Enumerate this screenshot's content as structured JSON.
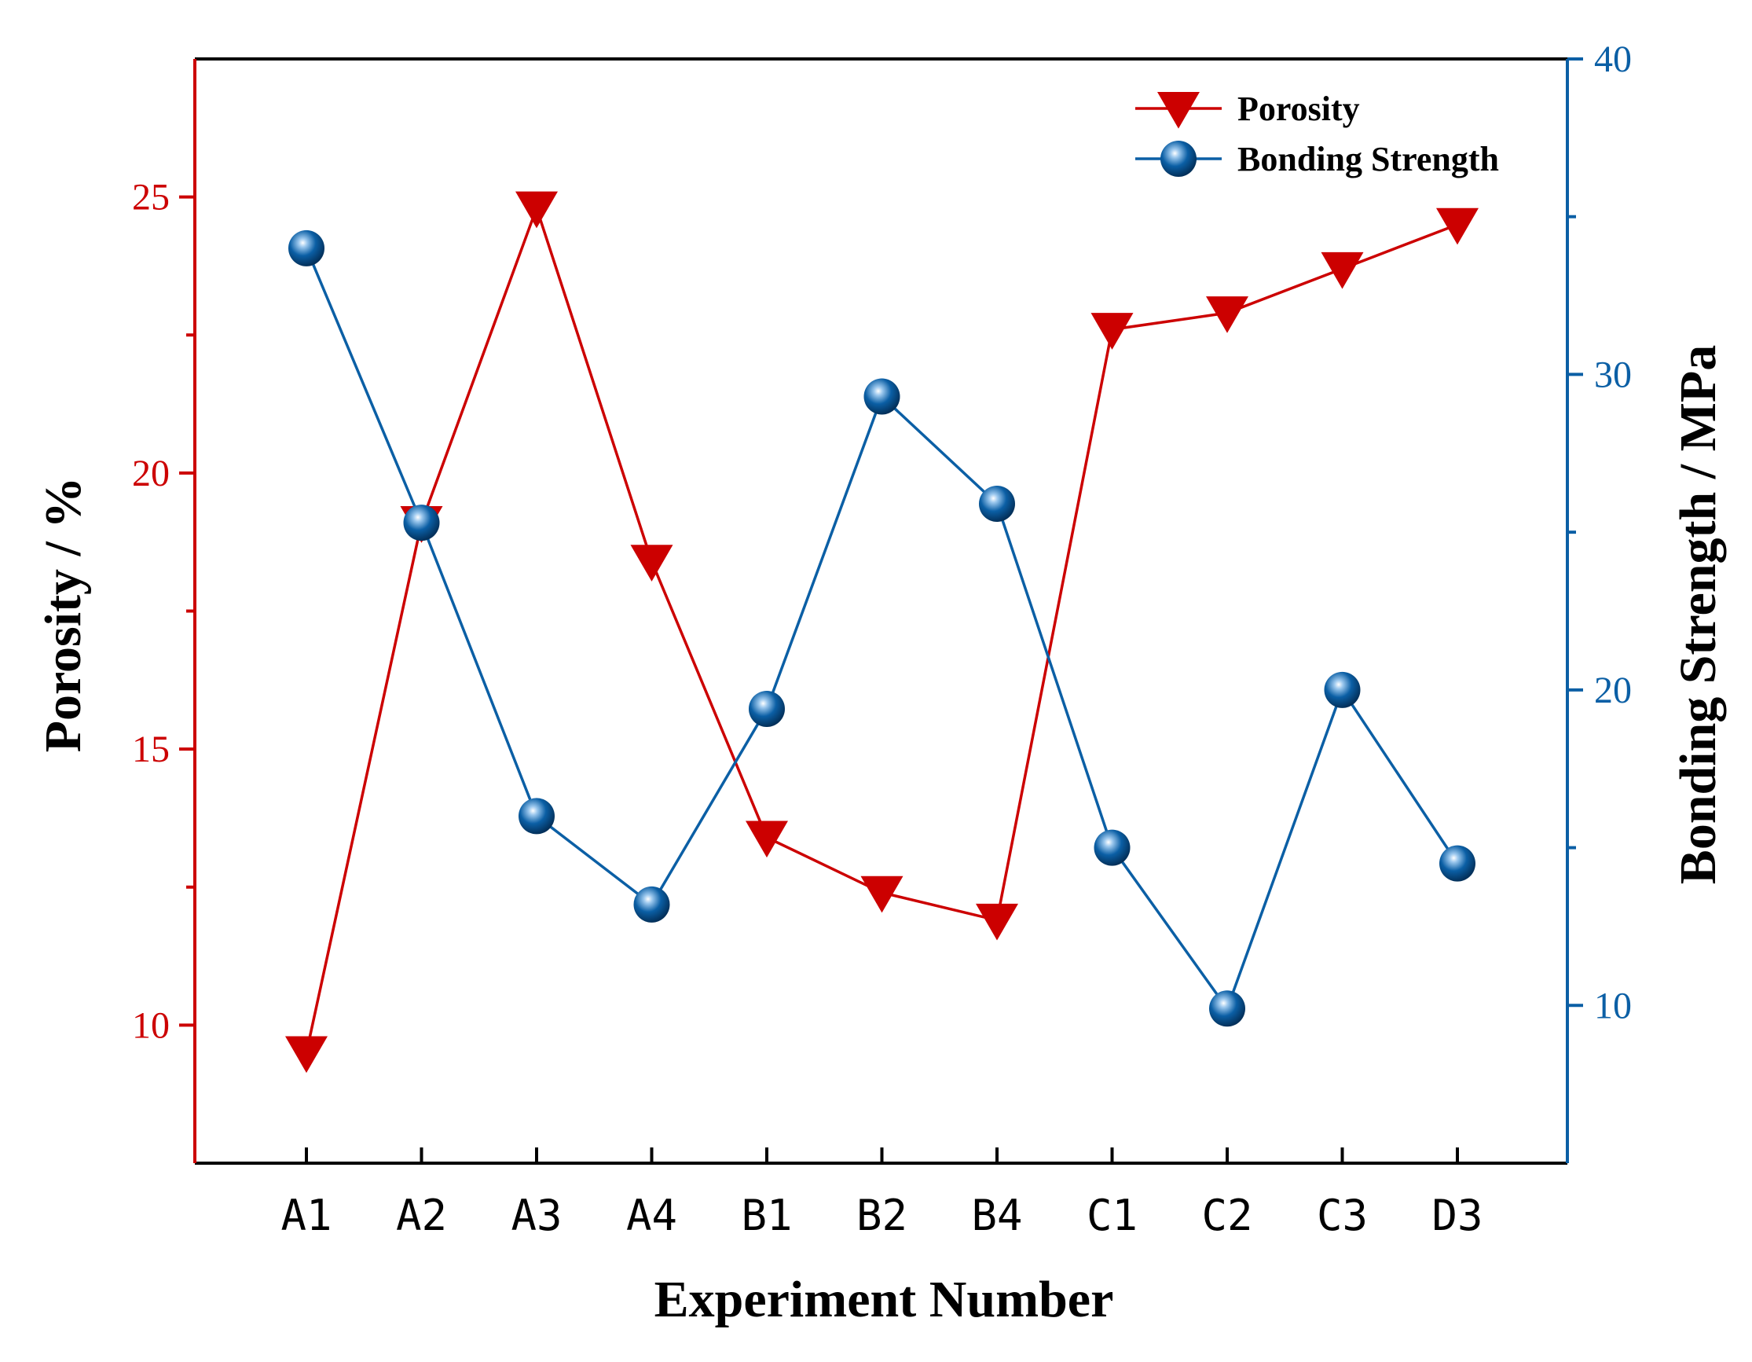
{
  "colors": {
    "porosity": "#cc0000",
    "bonding": "#0b5fa5",
    "axis": "#000000"
  },
  "chart_data": {
    "type": "line",
    "x_label": "Experiment Number",
    "categories": [
      "A1",
      "A2",
      "A3",
      "A4",
      "B1",
      "B2",
      "B4",
      "C1",
      "C2",
      "C3",
      "D3"
    ],
    "y_left": {
      "label": "Porosity / %",
      "range": [
        7.5,
        27.5
      ],
      "ticks": [
        10,
        15,
        20,
        25
      ],
      "tick_labels": [
        "10",
        "15",
        "20",
        "25"
      ],
      "minor_ticks": [
        12.5,
        17.5,
        22.5
      ]
    },
    "y_right": {
      "label": "Bonding Strength / MPa",
      "range": [
        5,
        40
      ],
      "ticks": [
        10,
        20,
        30,
        40
      ],
      "tick_labels": [
        "10",
        "20",
        "30",
        "40"
      ],
      "minor_ticks": [
        15,
        25,
        35
      ]
    },
    "series": [
      {
        "name": "Porosity",
        "axis": "left",
        "marker": "triangle-down",
        "values": [
          9.5,
          19.1,
          24.8,
          18.4,
          13.4,
          12.4,
          11.9,
          22.6,
          22.9,
          23.7,
          24.5
        ]
      },
      {
        "name": "Bonding Strength",
        "axis": "right",
        "marker": "circle",
        "values": [
          34.0,
          25.3,
          16.0,
          13.2,
          19.4,
          29.3,
          25.9,
          15.0,
          9.9,
          20.0,
          14.5
        ]
      }
    ],
    "legend_position": "top-right"
  }
}
